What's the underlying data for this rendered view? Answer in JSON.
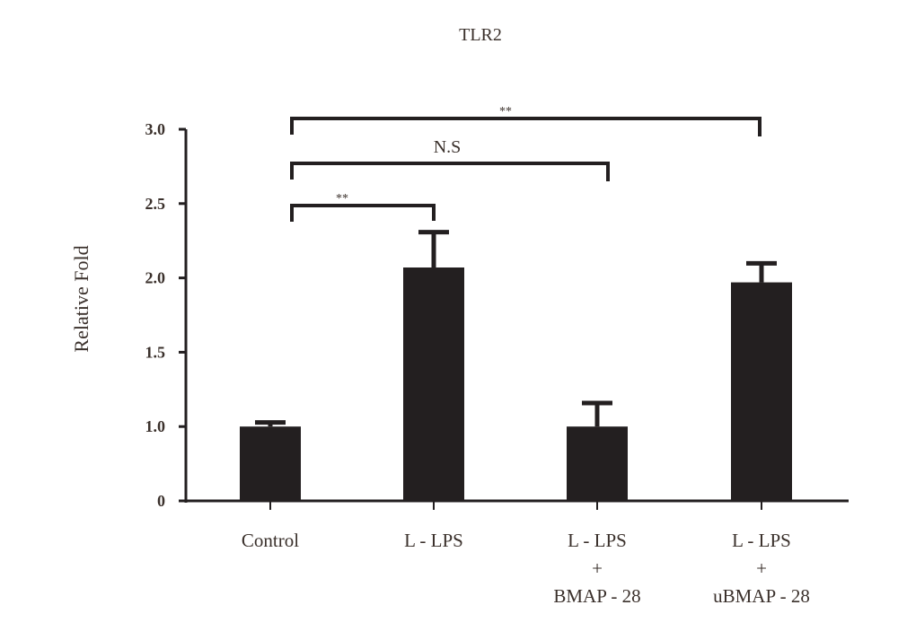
{
  "chart_data": {
    "type": "bar",
    "title": "TLR2",
    "xlabel": "",
    "ylabel": "Relative Fold",
    "ylim": [
      0,
      3.0
    ],
    "yticks": [
      "0",
      "1.0",
      "1.5",
      "2.0",
      "2.5",
      "3.0"
    ],
    "ytick_values": [
      0,
      1.0,
      1.5,
      2.0,
      2.5,
      3.0
    ],
    "categories": [
      [
        "Control"
      ],
      [
        "L - LPS"
      ],
      [
        "L - LPS",
        "+",
        "BMAP - 28"
      ],
      [
        "L - LPS",
        "+",
        "uBMAP - 28"
      ]
    ],
    "values": [
      1.0,
      2.07,
      1.0,
      1.97
    ],
    "error_upper": [
      1.04,
      2.32,
      1.17,
      2.11
    ],
    "bar_color": "#231f20",
    "significance": [
      {
        "from": 0,
        "to": 1,
        "label": "**"
      },
      {
        "from": 0,
        "to": 2,
        "label": "N.S"
      },
      {
        "from": 0,
        "to": 3,
        "label": "**"
      }
    ]
  }
}
